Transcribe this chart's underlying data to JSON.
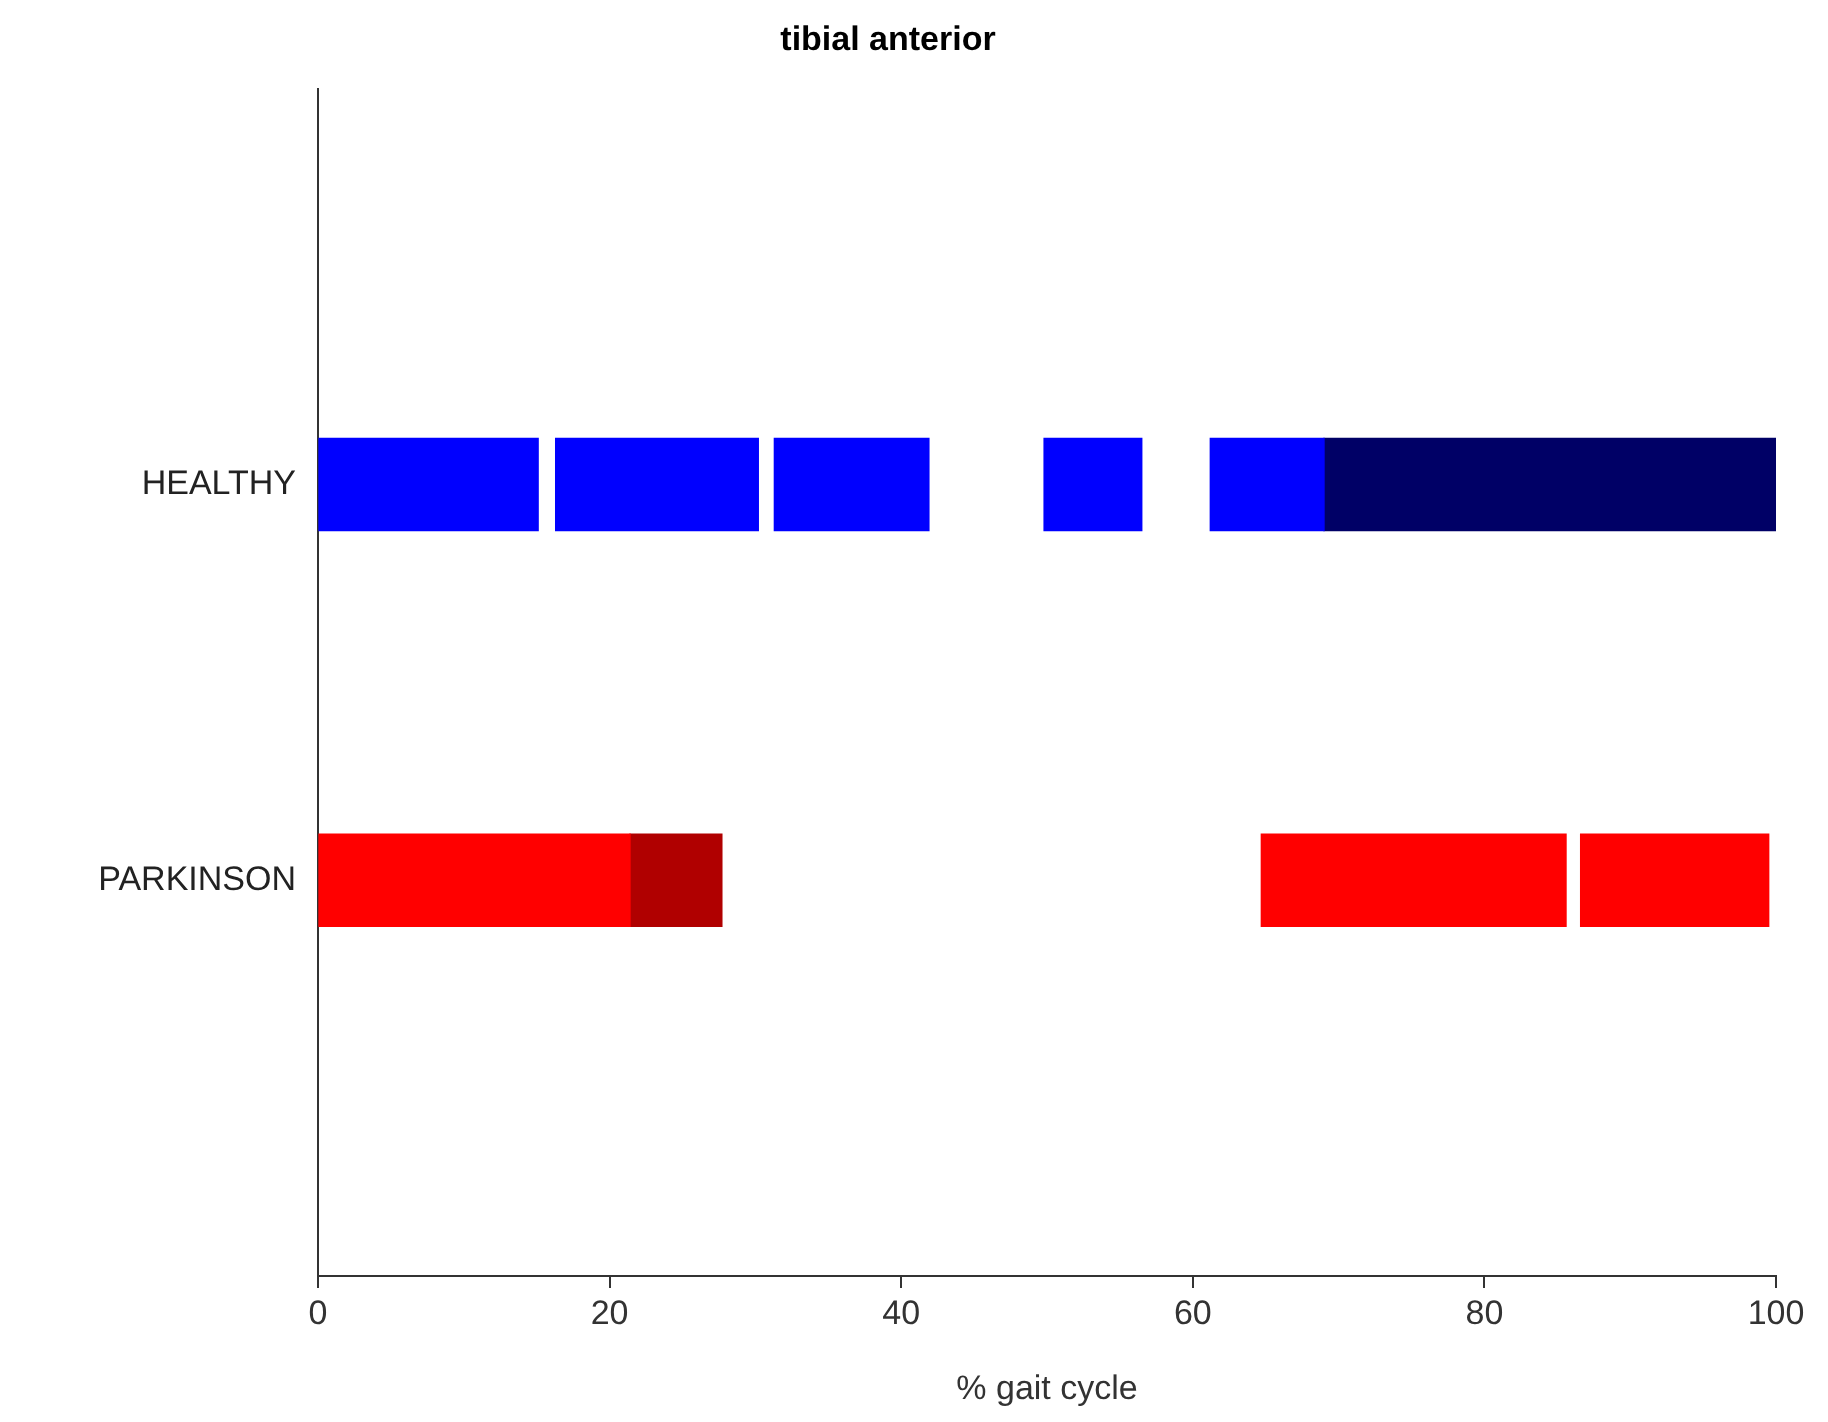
{
  "chart_data": {
    "type": "bar",
    "orientation": "horizontal",
    "title": "tibial anterior",
    "xlabel": "% gait cycle",
    "categories": [
      "HEALTHY",
      "PARKINSON"
    ],
    "series": [
      {
        "color": "#0000ff",
        "values": [
          15.1,
          null
        ],
        "base": [
          0,
          null
        ]
      },
      {
        "color": "#0000ff",
        "values": [
          13.9,
          null
        ],
        "base": [
          16.3,
          null
        ]
      },
      {
        "color": "#0000ff",
        "values": [
          10.6,
          null
        ],
        "base": [
          31.3,
          null
        ]
      },
      {
        "color": "#0000ff",
        "values": [
          6.7,
          null
        ],
        "base": [
          49.8,
          null
        ]
      },
      {
        "color": "#0000ff",
        "values": [
          7.8,
          null
        ],
        "base": [
          61.2,
          null
        ]
      },
      {
        "color": "#000066",
        "values": [
          31.0,
          null
        ],
        "base": [
          69.0,
          null
        ]
      },
      {
        "color": "#ff0000",
        "values": [
          null,
          21.4
        ],
        "base": [
          null,
          0
        ]
      },
      {
        "color": "#b00000",
        "values": [
          null,
          6.3
        ],
        "base": [
          null,
          21.4
        ]
      },
      {
        "color": "#ff0000",
        "values": [
          null,
          20.9
        ],
        "base": [
          null,
          64.7
        ]
      },
      {
        "color": "#ff0000",
        "values": [
          null,
          12.9
        ],
        "base": [
          null,
          86.6
        ]
      }
    ],
    "xlim": [
      0,
      100
    ],
    "xticks": [
      0,
      20,
      40,
      60,
      80,
      100
    ],
    "grid": false
  }
}
